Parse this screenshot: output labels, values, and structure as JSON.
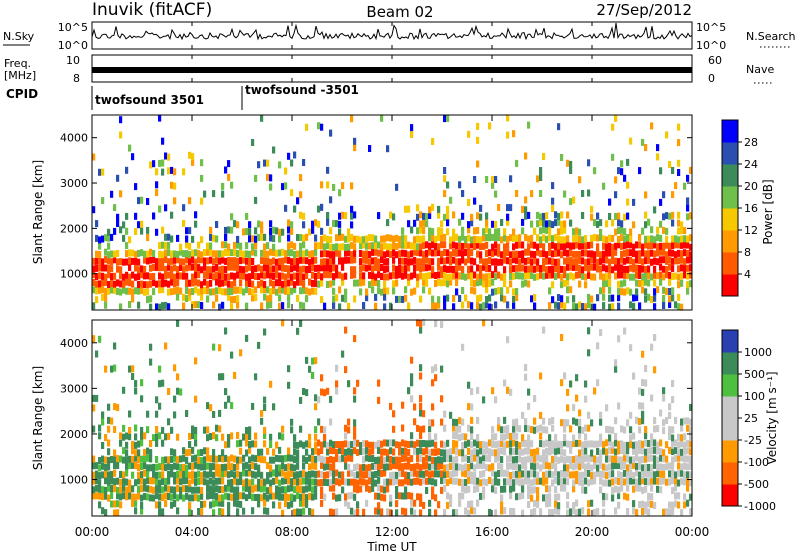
{
  "header": {
    "station": "Inuvik (fitACF)",
    "beam": "Beam 02",
    "date": "27/Sep/2012"
  },
  "noise_panel": {
    "left_label": "N.Sky",
    "left_ticks": [
      "10^5",
      "10^0"
    ],
    "right_ticks": [
      "10^5",
      "10^0"
    ],
    "right_label": "N.Search"
  },
  "freq_panel": {
    "left_label_top": "Freq.",
    "left_label_unit": "[MHz]",
    "left_ticks": [
      "10",
      "8"
    ],
    "right_ticks": [
      "60",
      "0"
    ],
    "right_label": "Nave"
  },
  "cpid_panel": {
    "label": "CPID",
    "modes": [
      "twofsound 3501",
      "twofsound -3501"
    ],
    "mode_change_hour": 6.0
  },
  "colors": {
    "power": [
      "#0000ff",
      "#2a4fb0",
      "#3c8c5a",
      "#6fc04a",
      "#f5c800",
      "#ff9a00",
      "#ff5a00",
      "#ff0000"
    ],
    "velocity": [
      "#2a3fb0",
      "#3c8c5a",
      "#4fbf3f",
      "#c8c8c8",
      "#c8c8c8",
      "#ff9a00",
      "#ff6400",
      "#ff0000"
    ]
  },
  "chart_data": [
    {
      "type": "heatmap",
      "panel": "power",
      "ylabel": "Slant Range [km]",
      "ylim": [
        200,
        4500
      ],
      "yticks": [
        1000,
        2000,
        3000,
        4000
      ],
      "xlim_hours": [
        0,
        24
      ],
      "colorbar": {
        "label": "Power [dB]",
        "tick_labels": [
          "28",
          "24",
          "20",
          "16",
          "12",
          "8",
          "4"
        ],
        "range": [
          0,
          32
        ]
      }
    },
    {
      "type": "heatmap",
      "panel": "velocity",
      "ylabel": "Slant Range [km]",
      "ylim": [
        200,
        4500
      ],
      "yticks": [
        1000,
        2000,
        3000,
        4000
      ],
      "xlim_hours": [
        0,
        24
      ],
      "xtick_labels": [
        "00:00",
        "04:00",
        "08:00",
        "12:00",
        "16:00",
        "20:00",
        "00:00"
      ],
      "xlabel": "Time UT",
      "colorbar": {
        "label": "Velocity [m s⁻¹]",
        "tick_labels": [
          "1000",
          "500",
          "100",
          "25",
          "-25",
          "-100",
          "-500",
          "-1000"
        ],
        "range": [
          -1000,
          1000
        ]
      }
    }
  ]
}
